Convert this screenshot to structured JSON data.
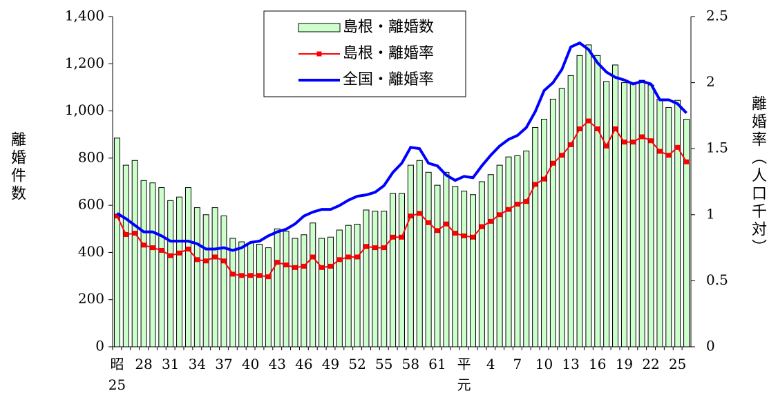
{
  "chart_data": {
    "type": "bar-line",
    "y_label": "離婚件数",
    "y2_label": "離婚率（人口千対）",
    "categories": [
      "昭\n25",
      null,
      null,
      "28",
      null,
      null,
      "31",
      null,
      null,
      "34",
      null,
      null,
      "37",
      null,
      null,
      "40",
      null,
      null,
      "43",
      null,
      null,
      "46",
      null,
      null,
      "49",
      null,
      null,
      "52",
      null,
      null,
      "55",
      null,
      null,
      "58",
      null,
      null,
      "61",
      null,
      null,
      "平\n元",
      null,
      null,
      "4",
      null,
      null,
      "7",
      null,
      null,
      "10",
      null,
      null,
      "13",
      null,
      null,
      "16",
      null,
      null,
      "19",
      null,
      null,
      "22",
      null,
      null,
      "25",
      null
    ],
    "series": [
      {
        "name": "島根・離婚数",
        "kind": "bar",
        "color": "#ccffcc",
        "values": [
          885,
          770,
          790,
          705,
          695,
          675,
          620,
          635,
          675,
          590,
          560,
          590,
          555,
          460,
          445,
          440,
          435,
          420,
          500,
          490,
          460,
          475,
          525,
          460,
          465,
          495,
          515,
          520,
          580,
          575,
          575,
          650,
          650,
          770,
          790,
          740,
          685,
          740,
          680,
          660,
          645,
          700,
          730,
          770,
          805,
          810,
          830,
          930,
          965,
          1050,
          1095,
          1150,
          1235,
          1280,
          1235,
          1125,
          1195,
          1120,
          1120,
          1130,
          1110,
          1050,
          1015,
          1045,
          965
        ]
      },
      {
        "name": "島根・離婚率",
        "kind": "line",
        "axis": "y2",
        "marker": true,
        "color": "#ff0000",
        "values": [
          0.99,
          0.85,
          0.86,
          0.77,
          0.75,
          0.73,
          0.69,
          0.71,
          0.74,
          0.66,
          0.65,
          0.68,
          0.65,
          0.55,
          0.54,
          0.54,
          0.54,
          0.53,
          0.64,
          0.62,
          0.6,
          0.61,
          0.68,
          0.6,
          0.61,
          0.66,
          0.68,
          0.68,
          0.76,
          0.75,
          0.75,
          0.83,
          0.83,
          0.99,
          1.01,
          0.94,
          0.88,
          0.93,
          0.86,
          0.84,
          0.83,
          0.91,
          0.95,
          1.0,
          1.04,
          1.08,
          1.1,
          1.23,
          1.27,
          1.39,
          1.45,
          1.53,
          1.65,
          1.71,
          1.65,
          1.52,
          1.65,
          1.55,
          1.55,
          1.59,
          1.56,
          1.48,
          1.45,
          1.51,
          1.4
        ]
      },
      {
        "name": "全国・離婚率",
        "kind": "line",
        "axis": "y2",
        "marker": false,
        "color": "#0000ff",
        "values": [
          1.01,
          0.97,
          0.92,
          0.87,
          0.87,
          0.84,
          0.8,
          0.8,
          0.8,
          0.78,
          0.74,
          0.74,
          0.75,
          0.73,
          0.75,
          0.79,
          0.8,
          0.84,
          0.87,
          0.89,
          0.93,
          0.99,
          1.02,
          1.04,
          1.04,
          1.07,
          1.11,
          1.14,
          1.15,
          1.17,
          1.22,
          1.32,
          1.39,
          1.51,
          1.5,
          1.39,
          1.37,
          1.3,
          1.26,
          1.29,
          1.28,
          1.37,
          1.45,
          1.52,
          1.57,
          1.6,
          1.66,
          1.78,
          1.94,
          2.0,
          2.1,
          2.27,
          2.3,
          2.25,
          2.15,
          2.08,
          2.04,
          2.02,
          1.99,
          2.01,
          1.99,
          1.87,
          1.87,
          1.84,
          1.77
        ]
      }
    ],
    "ylim": [
      0,
      1400
    ],
    "yticks": [
      0,
      200,
      400,
      600,
      800,
      {
        "value": 1000,
        "label": "1,000"
      },
      {
        "value": 1200,
        "label": "1,200"
      },
      {
        "value": 1400,
        "label": "1,400"
      }
    ],
    "y2lim": [
      0,
      2.5
    ],
    "y2ticks": [
      0,
      0.5,
      1,
      1.5,
      2,
      2.5
    ],
    "legend": "top"
  }
}
